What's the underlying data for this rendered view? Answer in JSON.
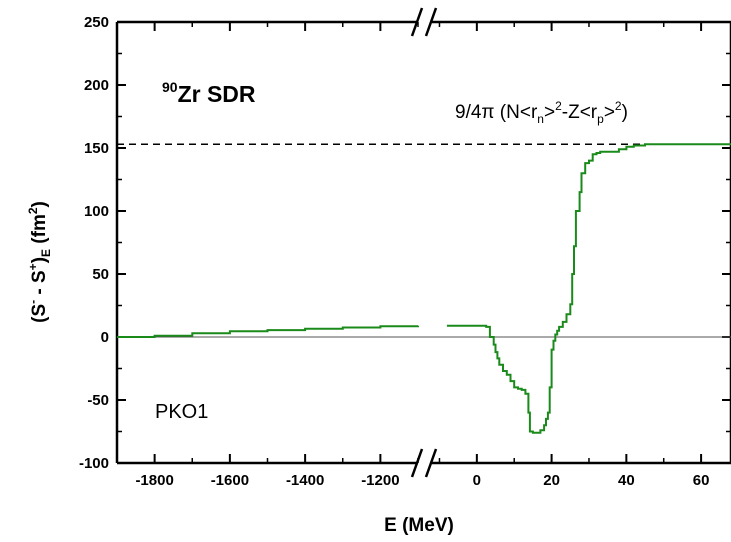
{
  "chart_data": {
    "type": "line",
    "title": "",
    "panel_label": {
      "sup": "90",
      "main": "Zr SDR"
    },
    "model_label": "PKO1",
    "xlabel": "E (MeV)",
    "ylabel": {
      "a": "(S",
      "a_sup": "-",
      "b": " - S",
      "b_sup": "+",
      "c": ")",
      "c_sub": "E",
      "d": " (fm",
      "d_sup": "2",
      "e": ")"
    },
    "broken_x_axis": true,
    "x_segments": [
      {
        "range": [
          -1900,
          -1100
        ],
        "ticks": [
          -1800,
          -1600,
          -1400,
          -1200
        ]
      },
      {
        "range": [
          -12,
          68
        ],
        "ticks": [
          0,
          20,
          40,
          60
        ]
      }
    ],
    "ylim": [
      -100,
      250
    ],
    "yticks": [
      -100,
      -50,
      0,
      50,
      100,
      150,
      200,
      250
    ],
    "ytick_labels": [
      "-100",
      "-50",
      "0",
      "50",
      "100",
      "150",
      "200",
      "250"
    ],
    "xtick_labels": [
      "-1800",
      "-1600",
      "-1400",
      "-1200",
      "0",
      "20",
      "40",
      "60"
    ],
    "reference_line": {
      "value": 153,
      "style": "dashed",
      "label": {
        "p1": "9/4π (N<r",
        "sub1": "n",
        "p2": ">",
        "sup1": "2",
        "p3": "-Z<r",
        "sub2": "p",
        "p4": ">",
        "sup2": "2",
        "p5": ")"
      }
    },
    "zero_line": true,
    "series": [
      {
        "color": "#1a8a1a",
        "segment1": {
          "x": [
            -1900,
            -1800,
            -1700,
            -1600,
            -1500,
            -1400,
            -1300,
            -1200,
            -1100
          ],
          "y": [
            0,
            1,
            3,
            4.5,
            5.5,
            6.5,
            7.5,
            8.5,
            9
          ]
        },
        "segment2": {
          "x": [
            -8,
            0,
            2.5,
            3.5,
            4.5,
            5,
            5.5,
            6,
            7,
            8,
            9,
            10,
            11,
            12,
            13,
            13.8,
            14.2,
            15,
            17,
            18,
            18.5,
            19,
            19.5,
            20,
            20.5,
            21,
            21.5,
            22,
            23,
            24,
            25,
            25.5,
            26,
            26.5,
            27,
            27.5,
            28,
            29,
            30,
            31,
            32,
            33,
            36,
            38,
            40,
            42,
            45,
            50,
            55,
            60,
            68
          ],
          "y": [
            9,
            9,
            8,
            0,
            -6,
            -12,
            -17,
            -22,
            -27,
            -30,
            -35,
            -40,
            -41,
            -42,
            -45,
            -60,
            -75,
            -76,
            -74,
            -70,
            -65,
            -60,
            -40,
            -10,
            -3,
            2,
            5,
            8,
            12,
            18,
            26,
            50,
            72,
            100,
            100,
            115,
            130,
            138,
            140,
            145,
            146,
            147,
            147,
            149,
            151,
            152,
            153,
            153,
            153,
            153,
            153
          ]
        }
      }
    ]
  }
}
